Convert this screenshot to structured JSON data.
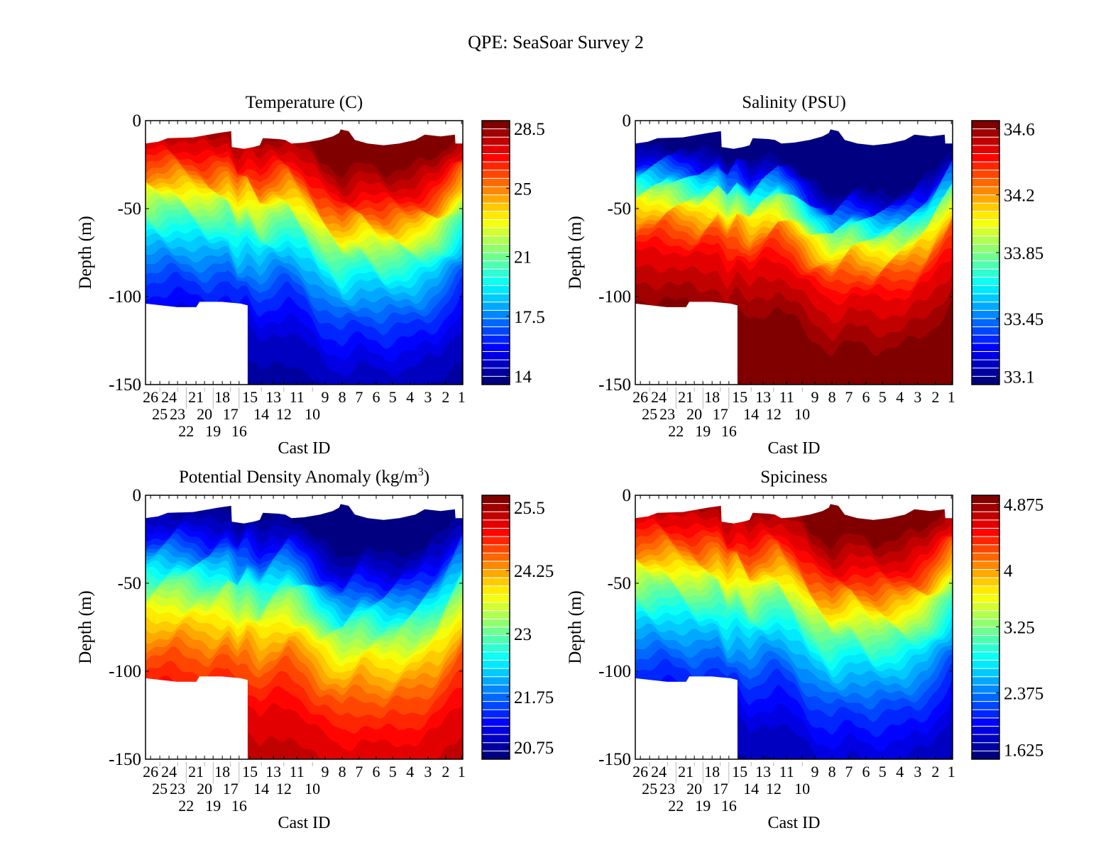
{
  "figure_title": "QPE: SeaSoar Survey 2",
  "chart_data": [
    {
      "type": "heatmap",
      "subtype": "filled-contour",
      "title": "Temperature  (C)",
      "xlabel": "Cast ID",
      "ylabel": "Depth  (m)",
      "ylim": [
        -150,
        0
      ],
      "yticks": [
        "0",
        "-50",
        "-100",
        "-150"
      ],
      "clim": [
        13.5,
        28.96
      ],
      "colorbar_ticks": [
        28.5,
        25,
        21,
        17.5,
        14
      ],
      "colorbar_tick_labels": [
        "28.5",
        "25",
        "21",
        "17.5",
        "14"
      ],
      "warm_on_top": true
    },
    {
      "type": "heatmap",
      "subtype": "filled-contour",
      "title": "Salinity  (PSU)",
      "xlabel": "Cast ID",
      "ylabel": "Depth  (m)",
      "ylim": [
        -150,
        0
      ],
      "yticks": [
        "0",
        "-50",
        "-100",
        "-150"
      ],
      "clim": [
        33.05,
        34.65
      ],
      "colorbar_ticks": [
        34.6,
        34.2,
        33.85,
        33.45,
        33.1
      ],
      "colorbar_tick_labels": [
        "34.6",
        "34.2",
        "33.85",
        "33.45",
        "33.1"
      ],
      "warm_on_top": false
    },
    {
      "type": "heatmap",
      "subtype": "filled-contour",
      "title": "Potential Density Anomaly  (kg/m",
      "title_sup": "3",
      "title_end": ")",
      "xlabel": "Cast ID",
      "ylabel": "Depth  (m)",
      "ylim": [
        -150,
        0
      ],
      "yticks": [
        "0",
        "-50",
        "-100",
        "-150"
      ],
      "clim": [
        20.51,
        25.74
      ],
      "colorbar_ticks": [
        25.5,
        24.25,
        23,
        21.75,
        20.75
      ],
      "colorbar_tick_labels": [
        "25.5",
        "24.25",
        "23",
        "21.75",
        "20.75"
      ],
      "warm_on_top": false
    },
    {
      "type": "heatmap",
      "subtype": "filled-contour",
      "title": "Spiciness",
      "xlabel": "Cast ID",
      "ylabel": "Depth  (m)",
      "ylim": [
        -150,
        0
      ],
      "yticks": [
        "0",
        "-50",
        "-100",
        "-150"
      ],
      "clim": [
        1.5,
        4.99
      ],
      "colorbar_ticks": [
        4.875,
        4,
        3.25,
        2.375,
        1.625
      ],
      "colorbar_tick_labels": [
        "4.875",
        "4",
        "3.25",
        "2.375",
        "1.625"
      ],
      "warm_on_top": true
    }
  ],
  "casts": {
    "ids": [
      "26",
      "25",
      "24",
      "23",
      "22",
      "21",
      "20",
      "19",
      "18",
      "17",
      "16",
      "15",
      "14",
      "13",
      "12",
      "11",
      "10",
      "9",
      "8",
      "7",
      "6",
      "5",
      "4",
      "3",
      "2",
      "1"
    ],
    "along_track": [
      1.6,
      4.5,
      7.4,
      10.1,
      12.8,
      15.9,
      18.6,
      21.3,
      24.2,
      26.8,
      29.5,
      32.9,
      36.5,
      40.3,
      43.6,
      47.7,
      52.6,
      56.6,
      62,
      67.3,
      72.7,
      77.9,
      83.4,
      89,
      94.6,
      99.6
    ]
  },
  "section": {
    "surface_depth_m": [
      [
        0,
        13
      ],
      [
        4,
        12
      ],
      [
        7,
        10
      ],
      [
        15,
        9.5
      ],
      [
        20,
        8
      ],
      [
        23,
        7
      ],
      [
        27,
        6
      ],
      [
        27.2,
        15
      ],
      [
        31,
        16
      ],
      [
        34,
        15
      ],
      [
        36,
        14
      ],
      [
        37,
        10
      ],
      [
        42,
        10.5
      ],
      [
        44,
        11
      ],
      [
        46,
        13
      ],
      [
        50,
        12.5
      ],
      [
        55,
        11
      ],
      [
        59,
        9
      ],
      [
        61,
        7
      ],
      [
        61.5,
        5
      ],
      [
        64,
        6
      ],
      [
        66,
        11
      ],
      [
        70,
        13
      ],
      [
        75,
        14
      ],
      [
        80,
        13
      ],
      [
        85,
        11
      ],
      [
        88,
        8
      ],
      [
        93,
        9
      ],
      [
        97.5,
        8
      ],
      [
        97.7,
        13
      ],
      [
        100,
        13
      ]
    ],
    "bottom_depth_m": [
      [
        0,
        104
      ],
      [
        10,
        106
      ],
      [
        16,
        106
      ],
      [
        17,
        103
      ],
      [
        24,
        103
      ],
      [
        30,
        104
      ],
      [
        32.2,
        105
      ]
    ],
    "bottom_mask_end": 32.2,
    "mid_isoline_depth_m": [
      [
        0,
        -52
      ],
      [
        10,
        -50
      ],
      [
        20,
        -55
      ],
      [
        26,
        -52
      ],
      [
        29,
        -60
      ],
      [
        32,
        -55
      ],
      [
        36,
        -63
      ],
      [
        40,
        -58
      ],
      [
        45,
        -55
      ],
      [
        50,
        -62
      ],
      [
        55,
        -72
      ],
      [
        62,
        -80
      ],
      [
        68,
        -75
      ],
      [
        75,
        -79
      ],
      [
        85,
        -76
      ],
      [
        92,
        -70
      ],
      [
        100,
        -52
      ]
    ]
  },
  "colormap": "jet",
  "levels": 32
}
